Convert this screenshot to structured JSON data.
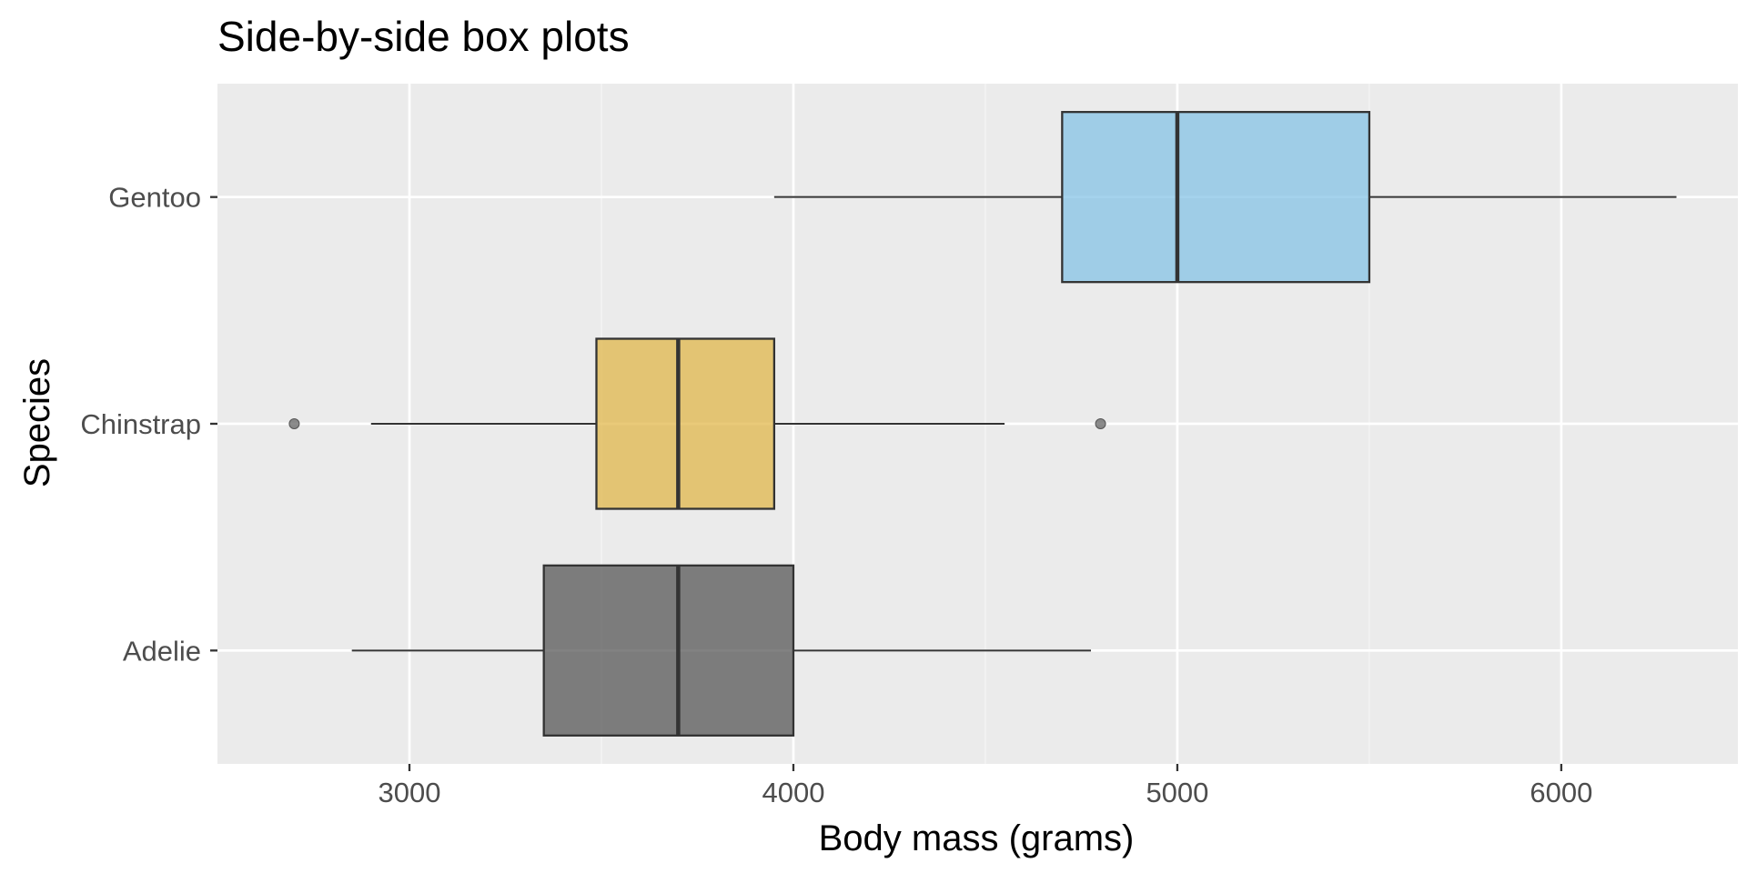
{
  "chart_data": {
    "type": "boxplot",
    "orientation": "horizontal",
    "title": "Side-by-side box plots",
    "xlabel": "Body mass (grams)",
    "ylabel": "Species",
    "xlim": [
      2500,
      6460
    ],
    "x_ticks": [
      3000,
      4000,
      5000,
      6000
    ],
    "x_tick_labels": [
      "3000",
      "4000",
      "5000",
      "6000"
    ],
    "x_minor_ticks": [
      3500,
      4500,
      5500
    ],
    "grid": true,
    "legend": "none",
    "categories": [
      "Adelie",
      "Chinstrap",
      "Gentoo"
    ],
    "boxes": [
      {
        "category": "Adelie",
        "whisker_low": 2850,
        "q1": 3350,
        "median": 3700,
        "q3": 4000,
        "whisker_high": 4775,
        "outliers": [],
        "color": "#4d4d4d"
      },
      {
        "category": "Chinstrap",
        "whisker_low": 2900,
        "q1": 3487,
        "median": 3700,
        "q3": 3950,
        "whisker_high": 4550,
        "outliers": [
          2700,
          4800
        ],
        "color": "#e0b340"
      },
      {
        "category": "Gentoo",
        "whisker_low": 3950,
        "q1": 4700,
        "median": 5000,
        "q3": 5500,
        "whisker_high": 6300,
        "outliers": [],
        "color": "#7fc0e6"
      }
    ],
    "colors": {
      "panel_background": "#ebebeb",
      "grid_major": "#ffffff",
      "grid_minor": "#f5f5f5",
      "box_outline": "#333333",
      "whisker": "#333333",
      "outlier": "#666666"
    }
  }
}
